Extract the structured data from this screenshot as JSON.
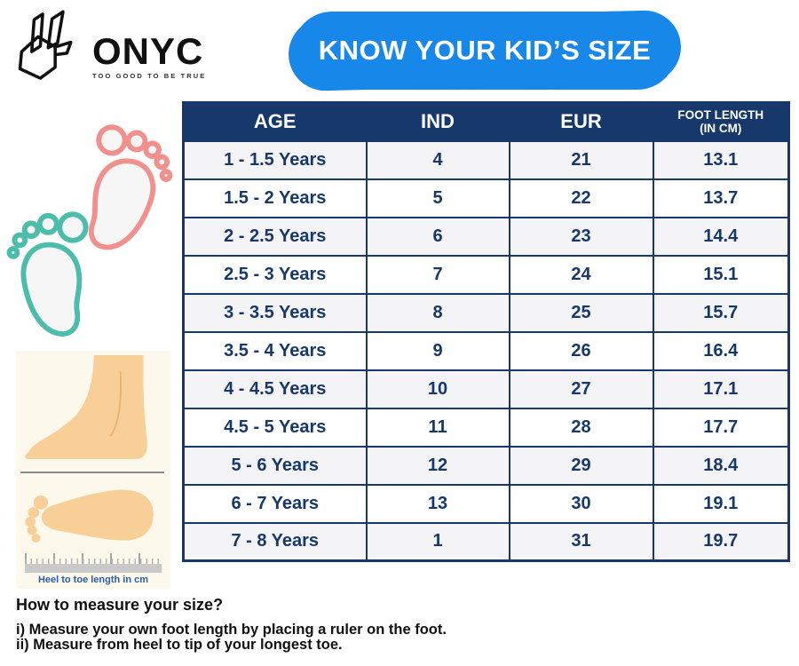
{
  "logo": {
    "brand": "ONYC",
    "tagline": "TOO GOOD TO BE TRUE"
  },
  "banner": {
    "title": "KNOW YOUR KID’S SIZE"
  },
  "size_chart": {
    "columns": [
      {
        "label": "AGE"
      },
      {
        "label": "IND"
      },
      {
        "label": "EUR"
      },
      {
        "label": "FOOT LENGTH",
        "sublabel": "(IN CM)"
      }
    ],
    "rows": [
      {
        "age": "1 - 1.5 Years",
        "ind": "4",
        "eur": "21",
        "foot_length_cm": "13.1"
      },
      {
        "age": "1.5 - 2 Years",
        "ind": "5",
        "eur": "22",
        "foot_length_cm": "13.7"
      },
      {
        "age": "2 - 2.5 Years",
        "ind": "6",
        "eur": "23",
        "foot_length_cm": "14.4"
      },
      {
        "age": "2.5 - 3 Years",
        "ind": "7",
        "eur": "24",
        "foot_length_cm": "15.1"
      },
      {
        "age": "3 - 3.5 Years",
        "ind": "8",
        "eur": "25",
        "foot_length_cm": "15.7"
      },
      {
        "age": "3.5 - 4 Years",
        "ind": "9",
        "eur": "26",
        "foot_length_cm": "16.4"
      },
      {
        "age": "4 - 4.5 Years",
        "ind": "10",
        "eur": "27",
        "foot_length_cm": "17.1"
      },
      {
        "age": "4.5 - 5 Years",
        "ind": "11",
        "eur": "28",
        "foot_length_cm": "17.7"
      },
      {
        "age": "5 - 6 Years",
        "ind": "12",
        "eur": "29",
        "foot_length_cm": "18.4"
      },
      {
        "age": "6 - 7 Years",
        "ind": "13",
        "eur": "30",
        "foot_length_cm": "19.1"
      },
      {
        "age": "7 - 8 Years",
        "ind": "1",
        "eur": "31",
        "foot_length_cm": "19.7"
      }
    ]
  },
  "measure_box": {
    "caption": "Heel to toe length in cm"
  },
  "instructions": {
    "heading": "How to measure your size?",
    "steps": [
      "i) Measure your own foot length by placing a ruler on the foot.",
      "ii) Measure from heel to tip of your longest toe."
    ]
  },
  "colors": {
    "navy": "#16386b",
    "banner_blue": "#1787ea",
    "row_alt": "#f4f4f7",
    "pink_footprint": "#f2908d",
    "teal_footprint": "#4cbcab",
    "cream_bg": "#fdf8ec",
    "skin": "#f8cf97",
    "caption_blue": "#2b5fa6"
  }
}
